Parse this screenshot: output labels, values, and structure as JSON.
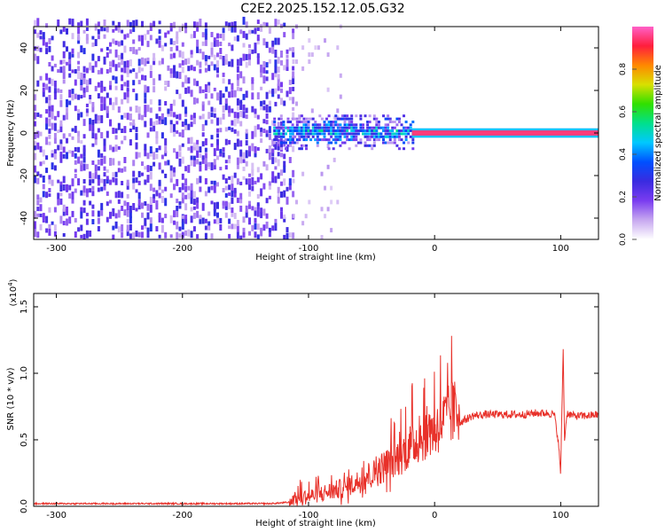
{
  "title": "C2E2.2025.152.12.05.G32",
  "chart_data": [
    {
      "type": "heatmap",
      "xlabel": "Height of straight line (km)",
      "ylabel": "Frequency (Hz)",
      "xlim": [
        -318,
        130
      ],
      "ylim": [
        -50,
        50
      ],
      "x_ticks": [
        -300,
        -200,
        -100,
        0,
        100
      ],
      "y_ticks": [
        -40,
        -20,
        0,
        20,
        40
      ],
      "colorbar": {
        "label": "Normalized spectral amplitude",
        "range": [
          0.0,
          1.0
        ],
        "ticks": [
          "0.0",
          "0.2",
          "0.4",
          "0.6",
          "0.8"
        ],
        "tick_values": [
          0.0,
          0.2,
          0.4,
          0.6,
          0.8
        ],
        "colormap": [
          "#ffffff",
          "#c7a8f0",
          "#7a3cf0",
          "#3a2be0",
          "#0050ff",
          "#00c8ff",
          "#00e08c",
          "#30e000",
          "#d8e000",
          "#ff8800",
          "#ff1e3c",
          "#ff60c8"
        ]
      },
      "regions": [
        {
          "x": [
            -318,
            -113
          ],
          "y": [
            -50,
            50
          ],
          "amplitude": 0.15,
          "pattern": "noise"
        },
        {
          "x": [
            -113,
            -75
          ],
          "y": [
            -50,
            50
          ],
          "amplitude": 0.05,
          "pattern": "sparse noise"
        },
        {
          "x": [
            -128,
            -18
          ],
          "y": [
            -8,
            8
          ],
          "amplitude": 0.4,
          "pattern": "band"
        },
        {
          "x": [
            -18,
            130
          ],
          "y": [
            -1,
            1
          ],
          "amplitude": 0.95,
          "pattern": "line at 0 Hz"
        }
      ]
    },
    {
      "type": "line",
      "xlabel": "Height of straight line (km)",
      "ylabel": "SNR (10 * v/v)",
      "y_multiplier": "(x10",
      "y_multiplier_exp": "4",
      "xlim": [
        -318,
        130
      ],
      "ylim": [
        0.0,
        1.6
      ],
      "x_ticks": [
        -300,
        -200,
        -100,
        0,
        100
      ],
      "y_ticks": [
        0.0,
        0.5,
        1.0,
        1.5
      ],
      "y_tick_labels": [
        "0.0",
        "0.5",
        "1.0",
        "1.5"
      ],
      "line_color": "#e8312a",
      "series": [
        {
          "x": [
            -318,
            -280,
            -240,
            -200,
            -160,
            -130,
            -115,
            -100,
            -85,
            -70,
            -60,
            -50,
            -40,
            -30,
            -20,
            -10,
            0,
            10,
            20,
            30,
            40,
            50,
            60,
            70,
            80,
            90,
            95,
            98,
            100,
            102,
            103,
            105,
            110,
            120,
            130
          ],
          "y": [
            0.02,
            0.02,
            0.02,
            0.02,
            0.02,
            0.02,
            0.03,
            0.05,
            0.08,
            0.11,
            0.15,
            0.19,
            0.25,
            0.3,
            0.38,
            0.45,
            0.5,
            0.57,
            0.63,
            0.68,
            0.69,
            0.69,
            0.69,
            0.69,
            0.7,
            0.7,
            0.69,
            0.5,
            0.25,
            1.2,
            0.5,
            0.7,
            0.68,
            0.68,
            0.69
          ]
        }
      ]
    }
  ]
}
